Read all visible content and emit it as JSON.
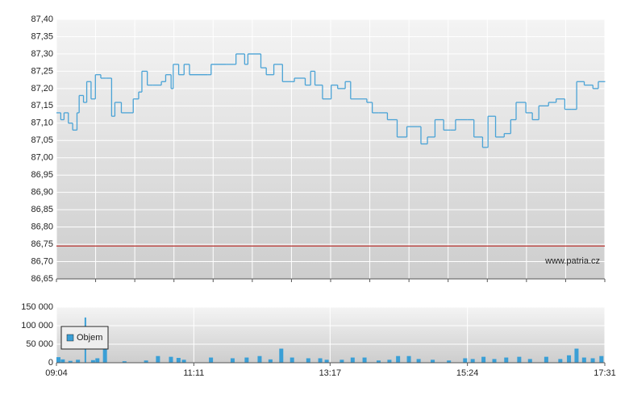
{
  "chart_data": [
    {
      "type": "line",
      "step": true,
      "color": "#4aa3d6",
      "xlim": [
        "09:04",
        "17:31"
      ],
      "x": [
        "09:04",
        "09:08",
        "09:11",
        "09:15",
        "09:19",
        "09:23",
        "09:25",
        "09:29",
        "09:32",
        "09:36",
        "09:40",
        "09:45",
        "09:50",
        "09:55",
        "09:58",
        "10:04",
        "10:13",
        "10:15",
        "10:20",
        "10:23",
        "10:28",
        "10:33",
        "10:41",
        "10:45",
        "10:50",
        "10:52",
        "10:57",
        "11:02",
        "11:07",
        "11:24",
        "11:27",
        "11:41",
        "11:48",
        "11:50",
        "11:58",
        "12:01",
        "12:13",
        "12:18",
        "12:25",
        "12:33",
        "12:44",
        "12:54",
        "12:59",
        "13:03",
        "13:10",
        "13:18",
        "13:24",
        "13:31",
        "13:36",
        "13:51",
        "13:56",
        "14:02",
        "14:10",
        "14:19",
        "14:28",
        "14:38",
        "14:41",
        "14:47",
        "14:54",
        "15:02",
        "15:08",
        "15:13",
        "15:24",
        "15:30",
        "15:38",
        "15:43",
        "15:50",
        "15:58",
        "16:04",
        "16:09",
        "16:18",
        "16:24",
        "16:30",
        "16:39",
        "16:46",
        "16:54",
        "17:00",
        "17:05",
        "17:12",
        "17:20",
        "17:25",
        "17:31"
      ],
      "values": [
        87.13,
        87.11,
        87.13,
        87.1,
        87.08,
        87.13,
        87.18,
        87.16,
        87.22,
        87.17,
        87.24,
        87.23,
        87.23,
        87.12,
        87.16,
        87.13,
        87.13,
        87.17,
        87.19,
        87.25,
        87.21,
        87.21,
        87.22,
        87.24,
        87.2,
        87.27,
        87.24,
        87.27,
        87.24,
        87.24,
        87.27,
        87.27,
        87.27,
        87.3,
        87.27,
        87.3,
        87.26,
        87.24,
        87.27,
        87.22,
        87.23,
        87.21,
        87.25,
        87.21,
        87.17,
        87.21,
        87.2,
        87.22,
        87.17,
        87.16,
        87.13,
        87.13,
        87.11,
        87.06,
        87.09,
        87.09,
        87.04,
        87.06,
        87.11,
        87.08,
        87.08,
        87.11,
        87.11,
        87.06,
        87.03,
        87.12,
        87.06,
        87.07,
        87.11,
        87.16,
        87.13,
        87.11,
        87.15,
        87.16,
        87.17,
        87.14,
        87.14,
        87.22,
        87.21,
        87.2,
        87.22,
        87.22
      ],
      "ylim": [
        86.65,
        87.4
      ],
      "yticks": [
        {
          "value": 86.65,
          "label": "86,65"
        },
        {
          "value": 86.7,
          "label": "86,70"
        },
        {
          "value": 86.75,
          "label": "86,75"
        },
        {
          "value": 86.8,
          "label": "86,80"
        },
        {
          "value": 86.85,
          "label": "86,85"
        },
        {
          "value": 86.9,
          "label": "86,90"
        },
        {
          "value": 86.95,
          "label": "86,95"
        },
        {
          "value": 87.0,
          "label": "87,00"
        },
        {
          "value": 87.05,
          "label": "87,05"
        },
        {
          "value": 87.1,
          "label": "87,10"
        },
        {
          "value": 87.15,
          "label": "87,15"
        },
        {
          "value": 87.2,
          "label": "87,20"
        },
        {
          "value": 87.25,
          "label": "87,25"
        },
        {
          "value": 87.3,
          "label": "87,30"
        },
        {
          "value": 87.35,
          "label": "87,35"
        },
        {
          "value": 87.4,
          "label": "87,40"
        }
      ],
      "reference_line": {
        "value": 86.745,
        "color": "#c0504d"
      },
      "watermark": "www.patria.cz",
      "grid": true
    },
    {
      "type": "bar",
      "legend": "upper left",
      "xlim": [
        "09:04",
        "17:31"
      ],
      "xticks": [
        "09:04",
        "11:11",
        "13:17",
        "15:24",
        "17:31"
      ],
      "x": [
        "09:04",
        "09:08",
        "09:15",
        "09:22",
        "09:30",
        "09:36",
        "09:40",
        "09:47",
        "10:05",
        "10:25",
        "10:36",
        "10:48",
        "10:55",
        "11:00",
        "11:25",
        "11:45",
        "11:58",
        "12:10",
        "12:20",
        "12:30",
        "12:40",
        "12:55",
        "13:06",
        "13:12",
        "13:26",
        "13:36",
        "13:47",
        "14:00",
        "14:10",
        "14:18",
        "14:28",
        "14:37",
        "14:50",
        "15:05",
        "15:20",
        "15:27",
        "15:37",
        "15:47",
        "15:58",
        "16:10",
        "16:20",
        "16:35",
        "16:48",
        "16:56",
        "17:03",
        "17:10",
        "17:18",
        "17:26"
      ],
      "series": [
        {
          "name": "Objem",
          "color": "#3a9fd6",
          "values": [
            15000,
            9000,
            5000,
            8000,
            122000,
            7000,
            12000,
            38000,
            4000,
            6000,
            18000,
            16000,
            13000,
            8000,
            14000,
            12000,
            14000,
            18000,
            9000,
            38000,
            14000,
            12000,
            12000,
            8000,
            8000,
            14000,
            14000,
            6000,
            8000,
            18000,
            18000,
            10000,
            8000,
            6000,
            12000,
            10000,
            16000,
            10000,
            14000,
            16000,
            10000,
            16000,
            10000,
            20000,
            38000,
            14000,
            12000,
            18000
          ]
        }
      ],
      "ylim": [
        0,
        150000
      ],
      "yticks": [
        0,
        {
          "value": 50000,
          "label": "50 000"
        },
        {
          "value": 100000,
          "label": "100 000"
        },
        {
          "value": 150000,
          "label": "150 000"
        }
      ],
      "grid": true
    }
  ]
}
